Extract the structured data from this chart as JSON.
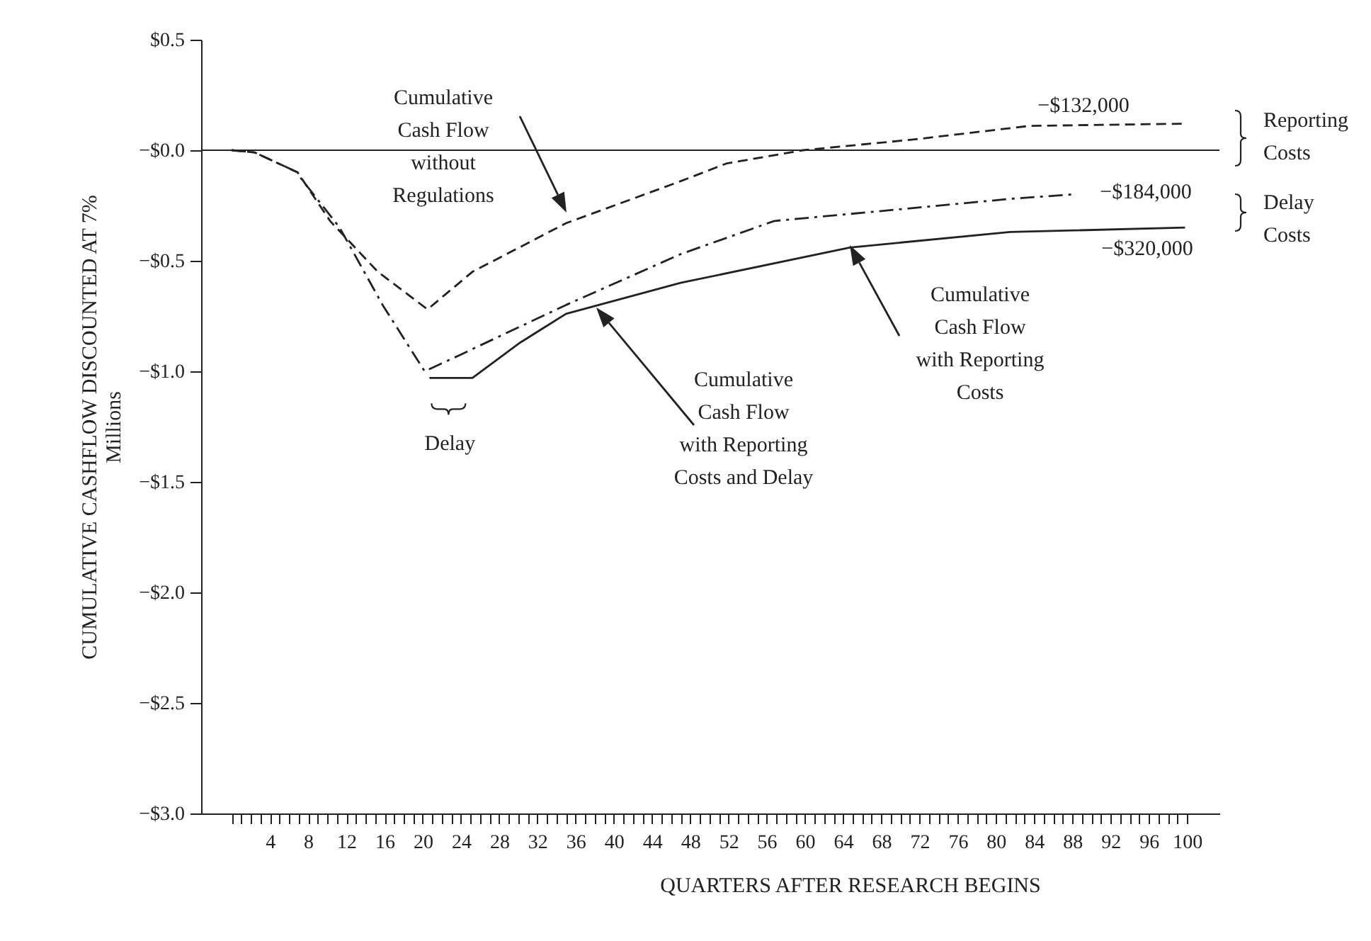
{
  "chart_data": {
    "type": "line",
    "xlabel": "QUARTERS AFTER RESEARCH BEGINS",
    "ylabel": "CUMULATIVE CASHFLOW DISCOUNTED AT 7%\nMillions",
    "xlim": [
      -3.2,
      103.4
    ],
    "ylim": [
      -3,
      0.5
    ],
    "xticks": [
      {
        "value": 0,
        "label": null
      },
      {
        "value": 1,
        "label": null
      },
      {
        "value": 2,
        "label": null
      },
      {
        "value": 3,
        "label": null
      },
      4,
      {
        "value": 5,
        "label": null
      },
      {
        "value": 6,
        "label": null
      },
      {
        "value": 7,
        "label": null
      },
      8,
      {
        "value": 9,
        "label": null
      },
      {
        "value": 10,
        "label": null
      },
      {
        "value": 11,
        "label": null
      },
      12,
      {
        "value": 13,
        "label": null
      },
      {
        "value": 14,
        "label": null
      },
      {
        "value": 15,
        "label": null
      },
      16,
      {
        "value": 17,
        "label": null
      },
      {
        "value": 18,
        "label": null
      },
      {
        "value": 19,
        "label": null
      },
      20,
      {
        "value": 21,
        "label": null
      },
      {
        "value": 22,
        "label": null
      },
      {
        "value": 23,
        "label": null
      },
      24,
      {
        "value": 25,
        "label": null
      },
      {
        "value": 26,
        "label": null
      },
      {
        "value": 27,
        "label": null
      },
      28,
      {
        "value": 29,
        "label": null
      },
      {
        "value": 30,
        "label": null
      },
      {
        "value": 31,
        "label": null
      },
      32,
      {
        "value": 33,
        "label": null
      },
      {
        "value": 34,
        "label": null
      },
      {
        "value": 35,
        "label": null
      },
      36,
      {
        "value": 37,
        "label": null
      },
      {
        "value": 38,
        "label": null
      },
      {
        "value": 39,
        "label": null
      },
      40,
      {
        "value": 41,
        "label": null
      },
      {
        "value": 42,
        "label": null
      },
      {
        "value": 43,
        "label": null
      },
      44,
      {
        "value": 45,
        "label": null
      },
      {
        "value": 46,
        "label": null
      },
      {
        "value": 47,
        "label": null
      },
      48,
      {
        "value": 49,
        "label": null
      },
      {
        "value": 50,
        "label": null
      },
      {
        "value": 51,
        "label": null
      },
      52,
      {
        "value": 53,
        "label": null
      },
      {
        "value": 54,
        "label": null
      },
      {
        "value": 55,
        "label": null
      },
      56,
      {
        "value": 57,
        "label": null
      },
      {
        "value": 58,
        "label": null
      },
      {
        "value": 59,
        "label": null
      },
      60,
      {
        "value": 61,
        "label": null
      },
      {
        "value": 62,
        "label": null
      },
      {
        "value": 63,
        "label": null
      },
      64,
      {
        "value": 65,
        "label": null
      },
      {
        "value": 66,
        "label": null
      },
      {
        "value": 67,
        "label": null
      },
      68,
      {
        "value": 69,
        "label": null
      },
      {
        "value": 70,
        "label": null
      },
      {
        "value": 71,
        "label": null
      },
      72,
      {
        "value": 73,
        "label": null
      },
      {
        "value": 74,
        "label": null
      },
      {
        "value": 75,
        "label": null
      },
      76,
      {
        "value": 77,
        "label": null
      },
      {
        "value": 78,
        "label": null
      },
      {
        "value": 79,
        "label": null
      },
      80,
      {
        "value": 81,
        "label": null
      },
      {
        "value": 82,
        "label": null
      },
      {
        "value": 83,
        "label": null
      },
      84,
      {
        "value": 85,
        "label": null
      },
      {
        "value": 86,
        "label": null
      },
      {
        "value": 87,
        "label": null
      },
      88,
      {
        "value": 89,
        "label": null
      },
      {
        "value": 90,
        "label": null
      },
      {
        "value": 91,
        "label": null
      },
      92,
      {
        "value": 93,
        "label": null
      },
      {
        "value": 94,
        "label": null
      },
      {
        "value": 95,
        "label": null
      },
      96,
      {
        "value": 97,
        "label": null
      },
      {
        "value": 98,
        "label": null
      },
      {
        "value": 99,
        "label": null
      },
      100
    ],
    "yticks": [
      {
        "value": 0.5,
        "label": "$0.5"
      },
      {
        "value": 0,
        "label": "−$0.0"
      },
      {
        "value": -0.5,
        "label": "−$0.5"
      },
      {
        "value": -1,
        "label": "−$1.0"
      },
      {
        "value": -1.5,
        "label": "−$1.5"
      },
      {
        "value": -2,
        "label": "−$2.0"
      },
      {
        "value": -2.5,
        "label": "−$2.5"
      },
      {
        "value": -3,
        "label": "−$3.0"
      }
    ],
    "ref_lines": [
      {
        "axis": "y",
        "value": 0
      }
    ],
    "series": [
      {
        "color": "#222222",
        "line_style": "dashed",
        "x": [
          0,
          2.4,
          6.9,
          10.3,
          15.3,
          20.5,
          25.2,
          35,
          47,
          51.8,
          59.8,
          71.7,
          83.5,
          99.6
        ],
        "values": [
          0,
          -0.01,
          -0.1,
          -0.32,
          -0.55,
          -0.72,
          -0.55,
          -0.33,
          -0.14,
          -0.06,
          0,
          0.05,
          0.11,
          0.12
        ]
      },
      {
        "color": "#222222",
        "line_style": "dashdot",
        "x": [
          0,
          2.4,
          6.9,
          7.3,
          11.3,
          15.8,
          20.2,
          23.7,
          35,
          47,
          56.8,
          71.7,
          81.5,
          88
        ],
        "values": [
          0,
          -0.01,
          -0.1,
          -0.13,
          -0.35,
          -0.7,
          -1.0,
          -0.93,
          -0.7,
          -0.47,
          -0.32,
          -0.26,
          -0.22,
          -0.2
        ]
      },
      {
        "color": "#222222",
        "line_style": "solid",
        "x": [
          20.7,
          25.2,
          30.2,
          35,
          47,
          64.7,
          81.5,
          99.8
        ],
        "values": [
          -1.03,
          -1.03,
          -0.87,
          -0.74,
          -0.6,
          -0.44,
          -0.37,
          -0.35
        ]
      }
    ],
    "annotations": [
      "Cumulative\nCash Flow\nwithout\nRegulations",
      "Cumulative\nCash Flow\nwith Reporting\nCosts",
      "Cumulative\nCash Flow\nwith Reporting\nCosts and Delay",
      {
        "text": "Delay",
        "x": 22.7,
        "y": -1.03
      },
      "−$132,000",
      "−$184,000",
      "−$320,000",
      "Reporting\nCosts",
      "Delay\nCosts"
    ]
  }
}
